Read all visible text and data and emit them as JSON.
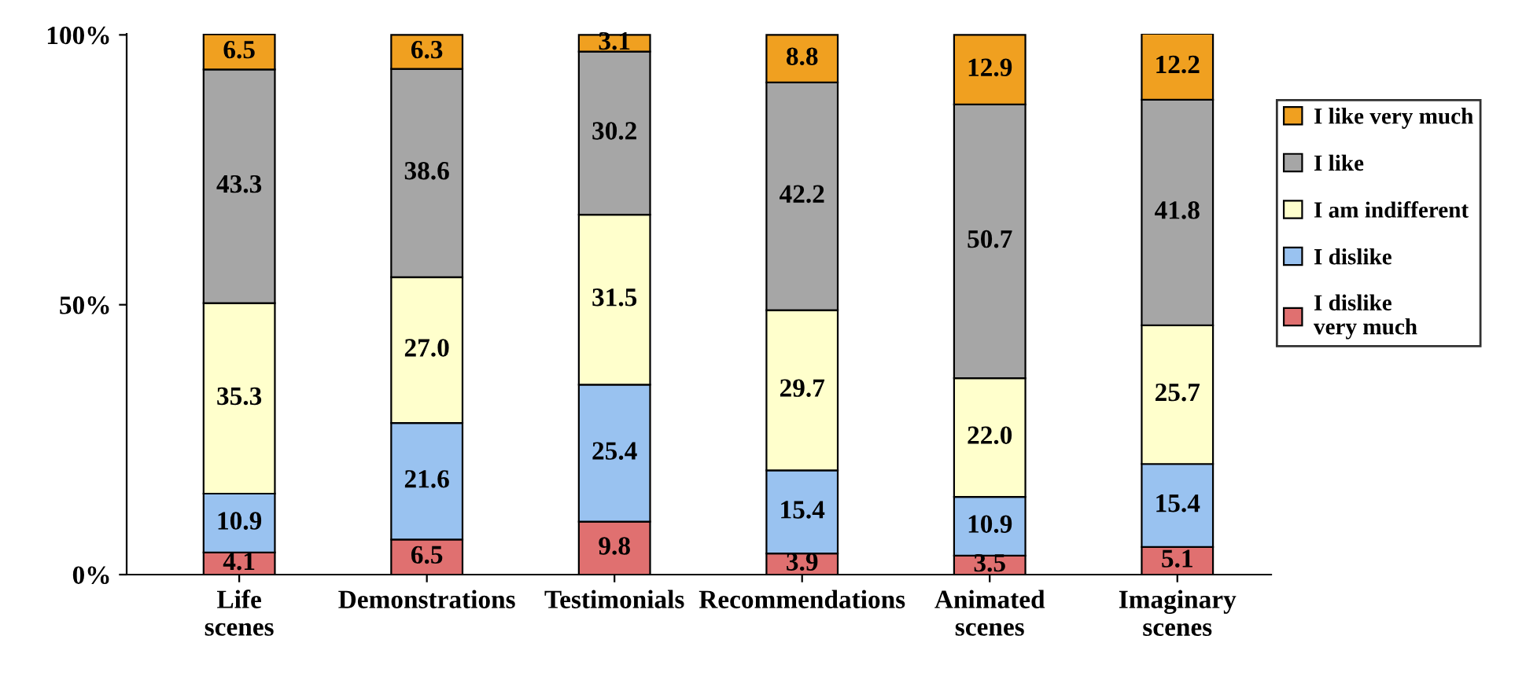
{
  "chart_data": {
    "type": "bar",
    "stacked": true,
    "legend": "right",
    "grid": false,
    "categories": [
      "Life\nscenes",
      "Demonstrations",
      "Testimonials",
      "Recommendations",
      "Animated\nscenes",
      "Imaginary\nscenes"
    ],
    "ylim": [
      0,
      100.2
    ],
    "yticks": [
      {
        "value": 0,
        "label": "0%"
      },
      {
        "value": 50,
        "label": "50%"
      },
      {
        "value": 100,
        "label": "100%"
      }
    ],
    "series": [
      {
        "name": "I dislike\nvery much",
        "color": "#e07070",
        "values": [
          4.1,
          6.5,
          9.8,
          3.9,
          3.5,
          5.1
        ],
        "value_labels": [
          "4.1",
          "6.5",
          "9.8",
          "3.9",
          "3.5",
          "5.1"
        ]
      },
      {
        "name": "I dislike",
        "color": "#99c2f0",
        "values": [
          10.9,
          21.6,
          25.4,
          15.4,
          10.9,
          15.4
        ],
        "value_labels": [
          "10.9",
          "21.6",
          "25.4",
          "15.4",
          "10.9",
          "15.4"
        ]
      },
      {
        "name": "I am indifferent",
        "color": "#ffffcc",
        "values": [
          35.3,
          27.0,
          31.5,
          29.7,
          22.0,
          25.7
        ],
        "value_labels": [
          "35.3",
          "27.0",
          "31.5",
          "29.7",
          "22.0",
          "25.7"
        ]
      },
      {
        "name": "I like",
        "color": "#a6a6a6",
        "values": [
          43.3,
          38.6,
          30.2,
          42.2,
          50.7,
          41.8
        ],
        "value_labels": [
          "43.3",
          "38.6",
          "30.2",
          "42.2",
          "50.7",
          "41.8"
        ]
      },
      {
        "name": "I like very much",
        "color": "#f0a020",
        "values": [
          6.5,
          6.3,
          3.1,
          8.8,
          12.9,
          12.2
        ],
        "value_labels": [
          "6.5",
          "6.3",
          "3.1",
          "8.8",
          "12.9",
          "12.2"
        ]
      }
    ]
  }
}
